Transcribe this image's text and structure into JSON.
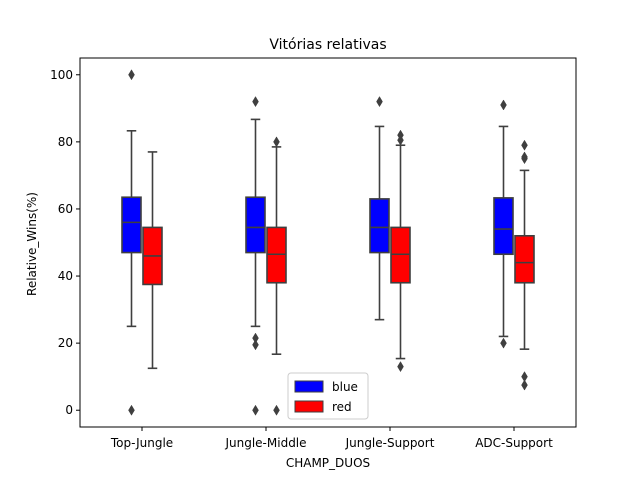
{
  "chart_data": {
    "type": "box",
    "title": "Vitórias relativas",
    "xlabel": "CHAMP_DUOS",
    "ylabel": "Relative_Wins(%)",
    "ylim": [
      -5,
      105
    ],
    "yticks": [
      0,
      20,
      40,
      60,
      80,
      100
    ],
    "categories": [
      "Top-Jungle",
      "Jungle-Middle",
      "Jungle-Support",
      "ADC-Support"
    ],
    "legend_position": "bottom-center",
    "series": [
      {
        "name": "blue",
        "color": "#0000ff",
        "boxes": [
          {
            "whisker_low": 25,
            "q1": 47,
            "median": 56,
            "q3": 63.5,
            "whisker_high": 83.3,
            "outliers": [
              100,
              0
            ]
          },
          {
            "whisker_low": 25,
            "q1": 47,
            "median": 54.5,
            "q3": 63.5,
            "whisker_high": 86.7,
            "outliers": [
              92,
              21.5,
              19.5,
              0
            ]
          },
          {
            "whisker_low": 27,
            "q1": 47,
            "median": 54.5,
            "q3": 63,
            "whisker_high": 84.6,
            "outliers": [
              92
            ]
          },
          {
            "whisker_low": 22,
            "q1": 46.5,
            "median": 54,
            "q3": 63.3,
            "whisker_high": 84.6,
            "outliers": [
              91,
              20
            ]
          }
        ]
      },
      {
        "name": "red",
        "color": "#ff0000",
        "boxes": [
          {
            "whisker_low": 12.5,
            "q1": 37.5,
            "median": 46,
            "q3": 54.5,
            "whisker_high": 77,
            "outliers": []
          },
          {
            "whisker_low": 16.7,
            "q1": 38,
            "median": 46.5,
            "q3": 54.5,
            "whisker_high": 78.5,
            "outliers": [
              80,
              0
            ]
          },
          {
            "whisker_low": 15.4,
            "q1": 38,
            "median": 46.5,
            "q3": 54.5,
            "whisker_high": 79,
            "outliers": [
              82,
              80.5,
              13
            ]
          },
          {
            "whisker_low": 18.2,
            "q1": 38,
            "median": 44,
            "q3": 52,
            "whisker_high": 71.5,
            "outliers": [
              79,
              75.5,
              75,
              10,
              7.5
            ]
          }
        ]
      }
    ]
  }
}
